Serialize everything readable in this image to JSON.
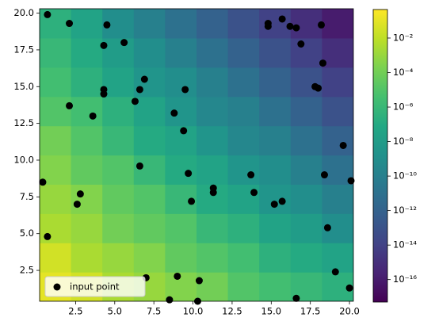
{
  "chart_data": {
    "type": "heatmap-scatter",
    "xlim": [
      0.2,
      20.25
    ],
    "ylim": [
      0.4,
      20.3
    ],
    "xticks": [
      2.5,
      {
        "value": 5,
        "label": "5.0"
      },
      7.5,
      {
        "value": 10,
        "label": "10.0"
      },
      12.5,
      {
        "value": 15,
        "label": "15.0"
      },
      17.5,
      {
        "value": 20,
        "label": "20.0"
      }
    ],
    "yticks": [
      2.5,
      {
        "value": 5,
        "label": "5.0"
      },
      7.5,
      {
        "value": 10,
        "label": "10.0"
      },
      12.5,
      {
        "value": 15,
        "label": "15.0"
      },
      17.5,
      {
        "value": 20,
        "label": "20.0"
      }
    ],
    "colormap": "viridis",
    "log_color_scale": true,
    "clim": [
      5e-18,
      0.45
    ],
    "cticks": [
      {
        "value": 0.01,
        "label": "10⁻²"
      },
      {
        "value": 0.0001,
        "label": "10⁻⁴"
      },
      {
        "value": 1e-06,
        "label": "10⁻⁶"
      },
      {
        "value": 1e-08,
        "label": "10⁻⁸"
      },
      {
        "value": 1e-10,
        "label": "10⁻¹⁰"
      },
      {
        "value": 1e-12,
        "label": "10⁻¹²"
      },
      {
        "value": 1e-14,
        "label": "10⁻¹⁴"
      },
      {
        "value": 1e-16,
        "label": "10⁻¹⁶"
      }
    ],
    "z": [
      [
        0.1,
        0.03,
        0.003,
        0.001,
        0.0003,
        0.0001,
        1e-05,
        3e-06,
        1e-06,
        3e-07
      ],
      [
        0.03,
        0.003,
        0.001,
        0.0003,
        3e-05,
        1e-05,
        3e-06,
        3e-07,
        1e-07,
        3e-08
      ],
      [
        0.003,
        0.001,
        0.0001,
        3e-05,
        1e-05,
        1e-06,
        3e-07,
        3e-08,
        1e-08,
        1e-09
      ],
      [
        0.001,
        0.0003,
        3e-05,
        1e-05,
        1e-06,
        1e-07,
        3e-08,
        3e-09,
        1e-09,
        1e-10
      ],
      [
        0.0003,
        3e-05,
        1e-05,
        1e-06,
        1e-07,
        3e-08,
        3e-09,
        1e-09,
        1e-10,
        1e-11
      ],
      [
        0.0001,
        1e-05,
        1e-06,
        1e-07,
        3e-08,
        3e-09,
        3e-10,
        1e-10,
        1e-11,
        1e-12
      ],
      [
        1e-05,
        3e-06,
        3e-07,
        3e-08,
        3e-09,
        3e-10,
        1e-10,
        1e-11,
        1e-12,
        1e-13
      ],
      [
        3e-06,
        3e-07,
        3e-08,
        3e-09,
        1e-09,
        1e-10,
        1e-11,
        1e-12,
        1e-13,
        1e-14
      ],
      [
        1e-06,
        1e-07,
        1e-08,
        1e-09,
        1e-10,
        1e-11,
        1e-12,
        1e-13,
        1e-14,
        1e-15
      ],
      [
        3e-07,
        3e-08,
        1e-09,
        1e-10,
        1e-11,
        1e-12,
        1e-13,
        1e-14,
        1e-15,
        1e-16
      ]
    ],
    "series": [
      {
        "name": "input point",
        "color": "#000000",
        "x": [
          0.7,
          2.1,
          4.5,
          4.3,
          5.6,
          6.9,
          6.6,
          4.3,
          4.3,
          2.1,
          6.3,
          9.5,
          3.6,
          8.8,
          9.4,
          6.6,
          9.7,
          0.4,
          2.8,
          2.6,
          0.7,
          7.0,
          9.0,
          10.4,
          8.5,
          10.3,
          9.9,
          11.3,
          11.3,
          13.7,
          13.9,
          15.2,
          15.7,
          16.6,
          19.1,
          20.0,
          18.6,
          18.4,
          19.6,
          20.1,
          17.8,
          18.0,
          18.3,
          18.2,
          14.8,
          14.8,
          15.7,
          16.2,
          16.6,
          16.9
        ],
        "values": [
          19.9,
          19.3,
          19.2,
          17.8,
          18.0,
          15.5,
          14.8,
          14.8,
          14.5,
          13.7,
          14.0,
          14.8,
          13.0,
          13.2,
          12.0,
          9.6,
          9.1,
          8.5,
          7.7,
          7.0,
          4.8,
          2.0,
          2.1,
          1.8,
          0.5,
          0.4,
          7.2,
          8.1,
          7.8,
          9.0,
          7.8,
          7.0,
          7.2,
          0.6,
          2.4,
          1.3,
          5.4,
          9.0,
          11.0,
          8.6,
          15.0,
          14.9,
          16.6,
          19.2,
          19.3,
          19.1,
          19.6,
          19.1,
          19.0,
          17.9
        ]
      }
    ],
    "legend": "lower left"
  }
}
